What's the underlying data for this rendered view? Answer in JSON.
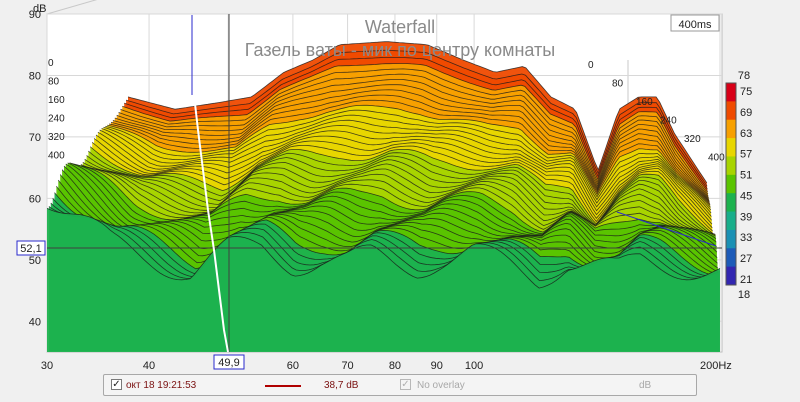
{
  "chart_data": {
    "type": "waterfall",
    "title": "Waterfall",
    "subtitle": "Газель ваты - мик по центру комнаты",
    "time_span_label": "400ms",
    "x_axis": {
      "scale": "log",
      "range": [
        30,
        200
      ],
      "unit_label": "Hz",
      "tick_labels": [
        "30",
        "40",
        "50",
        "60",
        "70",
        "80",
        "90",
        "100",
        "200Hz"
      ],
      "tick_values": [
        30,
        40,
        50,
        60,
        70,
        80,
        90,
        100,
        200
      ]
    },
    "y_axis": {
      "unit_label": "dB",
      "range": [
        35,
        90
      ],
      "tick_labels": [
        "90",
        "80",
        "70",
        "60",
        "50",
        "40"
      ],
      "tick_values": [
        90,
        80,
        70,
        60,
        50,
        40
      ]
    },
    "time_labels_left": [
      "0",
      "80",
      "160",
      "240",
      "320",
      "400"
    ],
    "time_labels_right": [
      "0",
      "80",
      "160",
      "240",
      "320",
      "400"
    ],
    "cursor": {
      "frequency_label": "49,9",
      "level_label": "52,1",
      "frequency": 49.9,
      "level": 52.1
    },
    "color_scale": {
      "ticks": [
        "78",
        "75",
        "69",
        "63",
        "57",
        "51",
        "45",
        "39",
        "33",
        "27",
        "21",
        "18"
      ],
      "colors": [
        "#d80018",
        "#ef4a00",
        "#f7a000",
        "#e8d600",
        "#a8d400",
        "#5ac400",
        "#1cb24e",
        "#18ae8a",
        "#1a90b4",
        "#1d5bb8",
        "#3226b0",
        "#4c1ba8"
      ]
    },
    "front_slice_profile": {
      "frequencies": [
        30,
        33,
        36,
        40,
        45,
        49.9,
        55,
        60,
        65,
        70,
        75,
        80,
        85,
        90,
        100,
        110,
        120,
        130,
        140,
        150,
        160,
        180,
        200
      ],
      "levels": [
        60.5,
        56.5,
        52.5,
        50.5,
        48,
        51.5,
        52,
        49.5,
        50,
        49.5,
        50.5,
        49.5,
        49,
        50,
        51,
        49,
        47,
        50,
        49,
        48,
        50,
        49,
        48
      ]
    },
    "back_slice_profile": {
      "frequencies": [
        30,
        35,
        40,
        45,
        50,
        55,
        60,
        70,
        80,
        90,
        100,
        110,
        120,
        130,
        140,
        150,
        160,
        170,
        180,
        200
      ],
      "levels": [
        70,
        68,
        69,
        70,
        74,
        76,
        78.5,
        79,
        78.5,
        76,
        74,
        75,
        70,
        68,
        58,
        68,
        70,
        70,
        64,
        56
      ]
    },
    "grid": true
  },
  "legend": {
    "date_label": "окт 18 19:21:53",
    "value_label": "38,7 dB",
    "overlay_label": "No overlay",
    "unit_label": "dB",
    "trace_color": "#b00000"
  }
}
